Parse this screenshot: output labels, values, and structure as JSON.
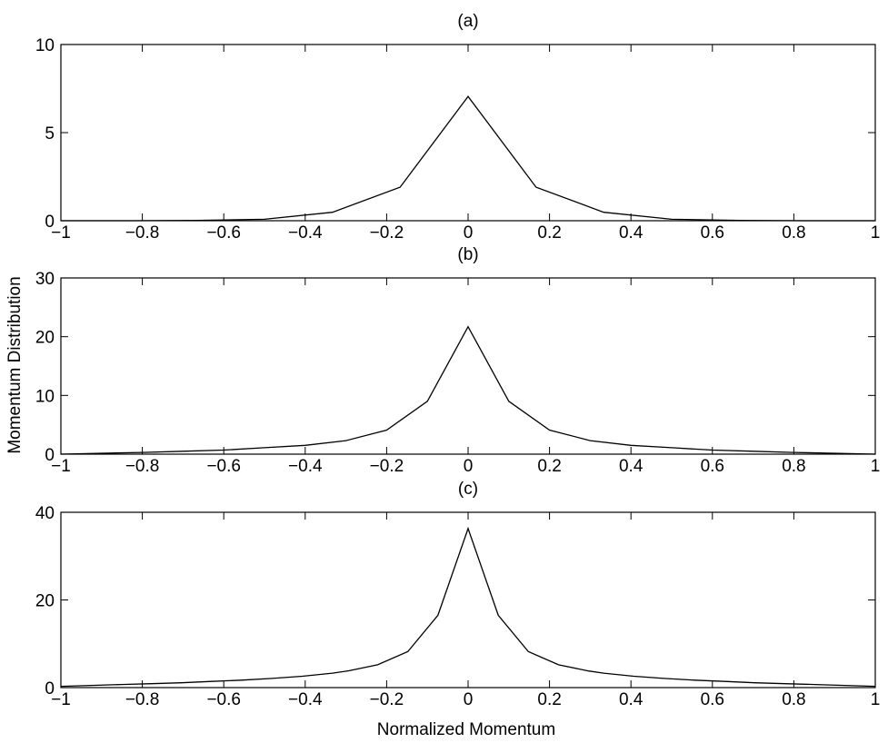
{
  "figure": {
    "ylabel": "Momentum Distribution",
    "xlabel": "Normalized Momentum"
  },
  "chart_data": [
    {
      "type": "line",
      "title": "(a)",
      "xlim": [
        -1,
        1
      ],
      "ylim": [
        0,
        10
      ],
      "xticks": [
        -1,
        -0.8,
        -0.6,
        -0.4,
        -0.2,
        0,
        0.2,
        0.4,
        0.6,
        0.8,
        1
      ],
      "xtick_labels": [
        "−1",
        "−0.8",
        "−0.6",
        "−0.4",
        "−0.2",
        "0",
        "0.2",
        "0.4",
        "0.6",
        "0.8",
        "1"
      ],
      "yticks": [
        0,
        5,
        10
      ],
      "ytick_labels": [
        "0",
        "5",
        "10"
      ],
      "grid": false,
      "series": [
        {
          "x": [
            -1,
            -0.833,
            -0.667,
            -0.5,
            -0.333,
            -0.167,
            0,
            0.167,
            0.333,
            0.5,
            0.667,
            0.833,
            1
          ],
          "values": [
            0.0,
            0.0,
            0.02,
            0.08,
            0.48,
            1.9,
            7.05,
            1.9,
            0.48,
            0.08,
            0.02,
            0.0,
            0.0
          ]
        }
      ]
    },
    {
      "type": "line",
      "title": "(b)",
      "xlim": [
        -1,
        1
      ],
      "ylim": [
        0,
        30
      ],
      "xticks": [
        -1,
        -0.8,
        -0.6,
        -0.4,
        -0.2,
        0,
        0.2,
        0.4,
        0.6,
        0.8,
        1
      ],
      "xtick_labels": [
        "−1",
        "−0.8",
        "−0.6",
        "−0.4",
        "−0.2",
        "0",
        "0.2",
        "0.4",
        "0.6",
        "0.8",
        "1"
      ],
      "yticks": [
        0,
        10,
        20,
        30
      ],
      "ytick_labels": [
        "0",
        "10",
        "20",
        "30"
      ],
      "grid": false,
      "series": [
        {
          "x": [
            -1,
            -0.9,
            -0.8,
            -0.7,
            -0.6,
            -0.5,
            -0.4,
            -0.3,
            -0.2,
            -0.1,
            0,
            0.1,
            0.2,
            0.3,
            0.4,
            0.5,
            0.6,
            0.7,
            0.8,
            0.9,
            1
          ],
          "values": [
            0.0,
            0.15,
            0.3,
            0.5,
            0.7,
            1.1,
            1.5,
            2.3,
            4.1,
            9.0,
            21.7,
            9.0,
            4.1,
            2.3,
            1.5,
            1.1,
            0.7,
            0.5,
            0.3,
            0.15,
            0.0
          ]
        }
      ]
    },
    {
      "type": "line",
      "title": "(c)",
      "xlim": [
        -1,
        1
      ],
      "ylim": [
        0,
        40
      ],
      "xticks": [
        -1,
        -0.8,
        -0.6,
        -0.4,
        -0.2,
        0,
        0.2,
        0.4,
        0.6,
        0.8,
        1
      ],
      "xtick_labels": [
        "−1",
        "−0.8",
        "−0.6",
        "−0.4",
        "−0.2",
        "0",
        "0.2",
        "0.4",
        "0.6",
        "0.8",
        "1"
      ],
      "yticks": [
        0,
        20,
        40
      ],
      "ytick_labels": [
        "0",
        "20",
        "40"
      ],
      "grid": false,
      "series": [
        {
          "x": [
            -1,
            -0.926,
            -0.852,
            -0.778,
            -0.704,
            -0.63,
            -0.556,
            -0.481,
            -0.407,
            -0.333,
            -0.296,
            -0.222,
            -0.148,
            -0.074,
            0,
            0.074,
            0.148,
            0.222,
            0.296,
            0.333,
            0.407,
            0.481,
            0.556,
            0.63,
            0.704,
            0.778,
            0.852,
            0.926,
            1
          ],
          "values": [
            0.3,
            0.5,
            0.7,
            0.9,
            1.1,
            1.4,
            1.7,
            2.1,
            2.6,
            3.3,
            3.8,
            5.2,
            8.2,
            16.5,
            36.3,
            16.5,
            8.2,
            5.2,
            3.8,
            3.3,
            2.6,
            2.1,
            1.7,
            1.4,
            1.1,
            0.9,
            0.7,
            0.5,
            0.3
          ]
        }
      ]
    }
  ]
}
